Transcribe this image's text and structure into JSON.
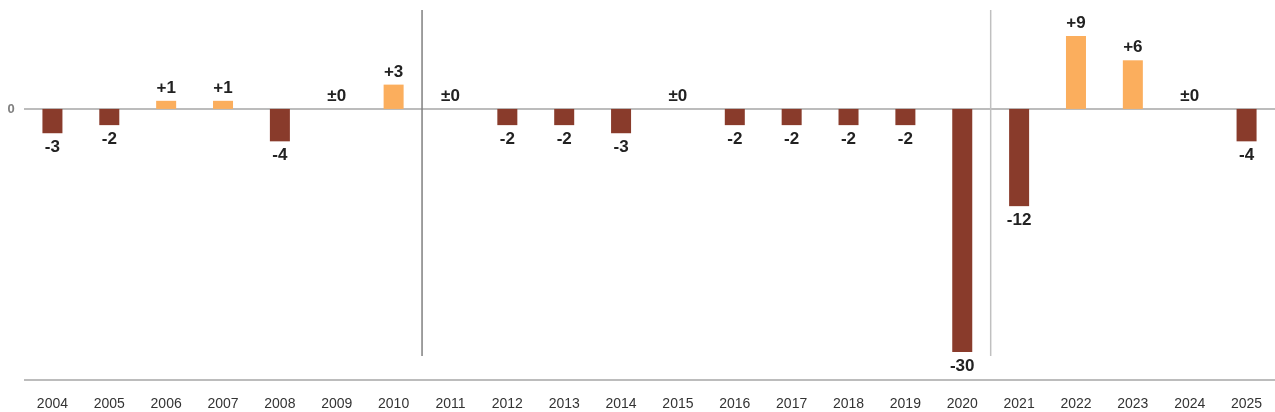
{
  "chart_data": {
    "type": "bar",
    "x": [
      2004,
      2005,
      2006,
      2007,
      2008,
      2009,
      2010,
      2011,
      2012,
      2013,
      2014,
      2015,
      2016,
      2017,
      2018,
      2019,
      2020,
      2021,
      2022,
      2023,
      2024,
      2025
    ],
    "values": [
      -3,
      -2,
      1,
      1,
      -4,
      0,
      3,
      0,
      -2,
      -2,
      -3,
      0,
      -2,
      -2,
      -2,
      -2,
      -30,
      -12,
      9,
      6,
      0,
      -4
    ],
    "colors": [
      "#893b2b",
      "#893b2b",
      "#fbae5d",
      "#fbae5d",
      "#893b2b",
      "#fbae5d",
      "#fbae5d",
      "#fbae5d",
      "#893b2b",
      "#893b2b",
      "#893b2b",
      "#fbae5d",
      "#893b2b",
      "#893b2b",
      "#893b2b",
      "#893b2b",
      "#893b2b",
      "#893b2b",
      "#fbae5d",
      "#fbae5d",
      "#fbae5d",
      "#893b2b"
    ],
    "value_labels": [
      "-3",
      "-2",
      "+1",
      "+1",
      "-4",
      "±0",
      "+3",
      "±0",
      "-2",
      "-2",
      "-3",
      "±0",
      "-2",
      "-2",
      "-2",
      "-2",
      "-30",
      "-12",
      "+9",
      "+6",
      "±0",
      "-4"
    ],
    "xlim": [
      2003.5,
      2025.5
    ],
    "xticks": [
      2004,
      2005,
      2006,
      2007,
      2008,
      2009,
      2010,
      2011,
      2012,
      2013,
      2014,
      2015,
      2016,
      2017,
      2018,
      2019,
      2020,
      2021,
      2022,
      2023,
      2024,
      2025
    ],
    "ref_lines": [
      {
        "axis": "y",
        "value": 0,
        "label": "0",
        "color": "#a6a6a6"
      },
      {
        "axis": "x",
        "value": 2010.5,
        "color": "#808080"
      },
      {
        "axis": "x",
        "value": 2020.5,
        "color": "#c0c0c0"
      }
    ]
  }
}
